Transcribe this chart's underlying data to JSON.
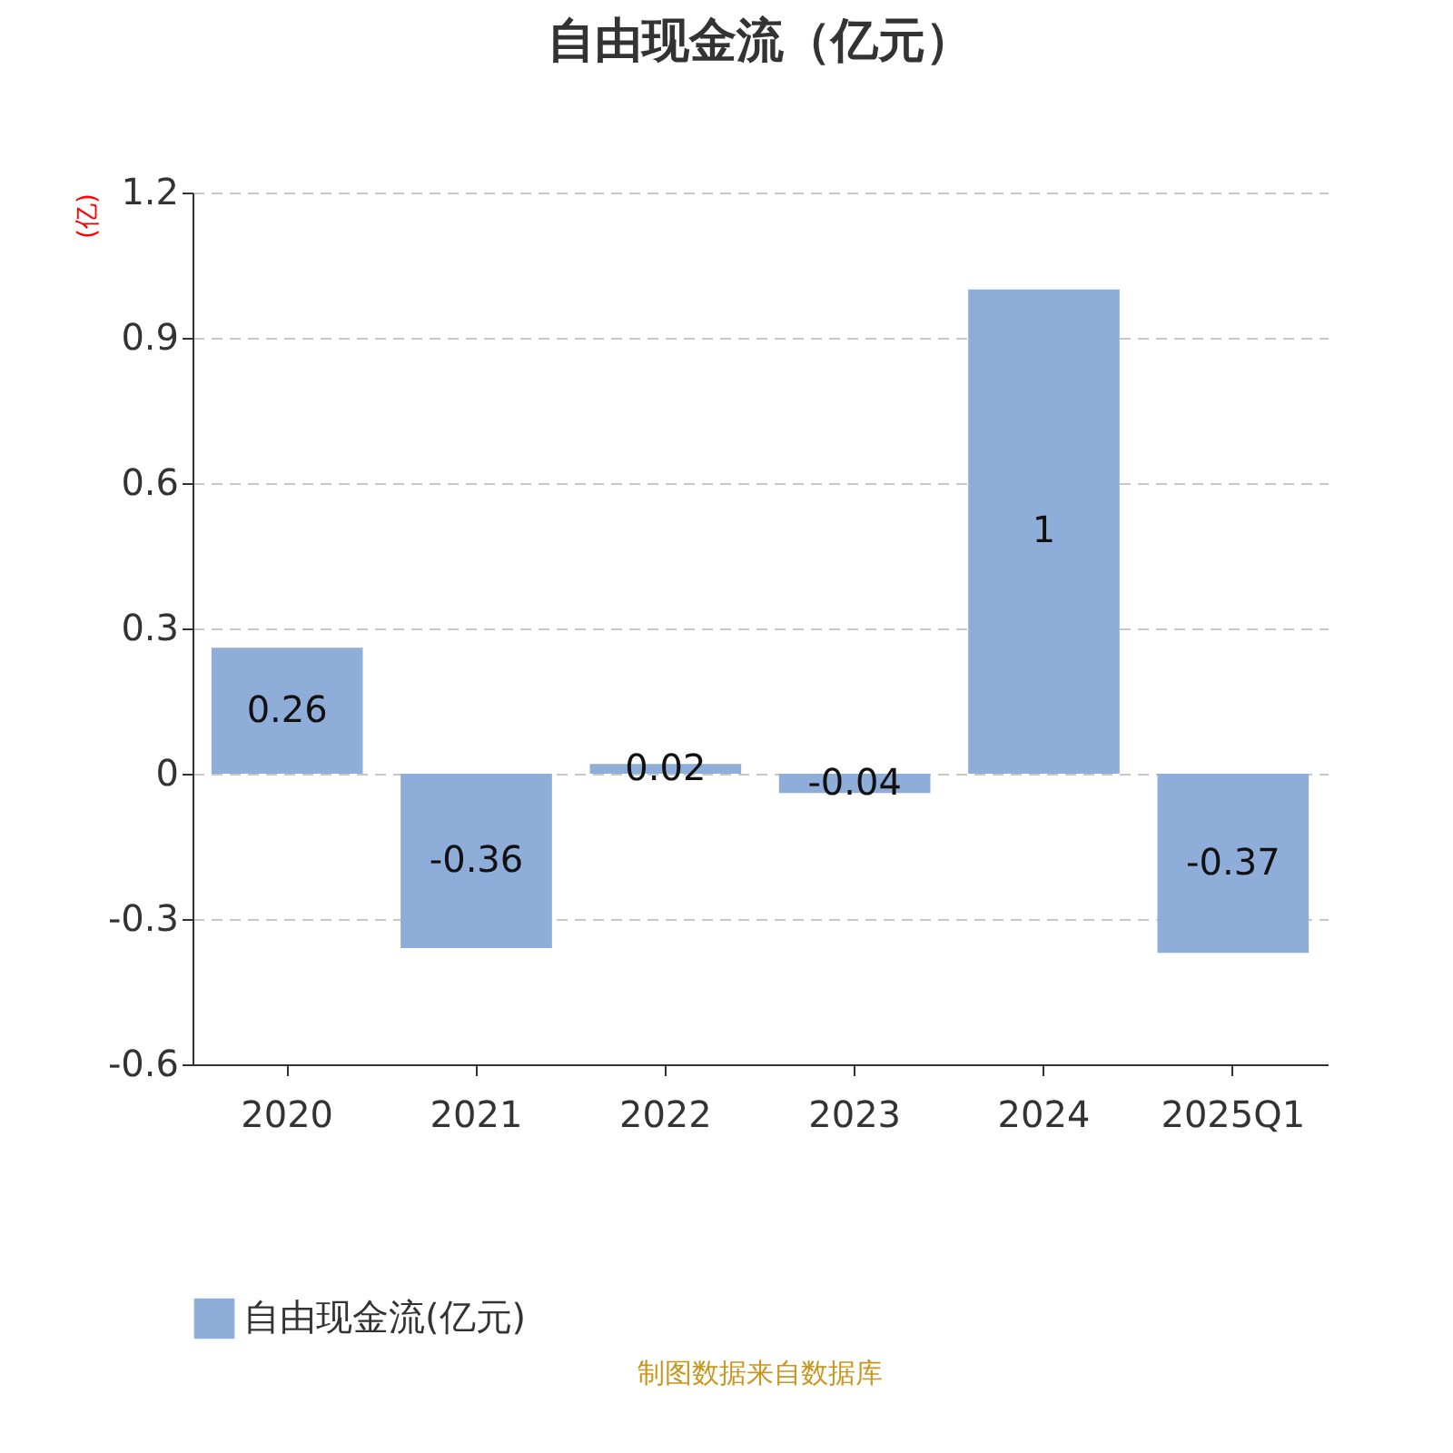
{
  "chart_data": {
    "type": "bar",
    "title": "自由现金流（亿元）",
    "ylabel": "(亿)",
    "categories": [
      "2020",
      "2021",
      "2022",
      "2023",
      "2024",
      "2025Q1"
    ],
    "series": [
      {
        "name": "自由现金流(亿元)",
        "color": "#8eadd9",
        "values": [
          0.26,
          -0.36,
          0.02,
          -0.04,
          1,
          -0.37
        ]
      }
    ],
    "ylim": [
      -0.6,
      1.2
    ],
    "yticks": [
      -0.6,
      -0.3,
      0,
      0.3,
      0.6,
      0.9,
      1.2
    ],
    "grid": "y",
    "legend": "bottom",
    "data_labels": true,
    "annotations": [
      "制图数据来自数据库"
    ]
  }
}
